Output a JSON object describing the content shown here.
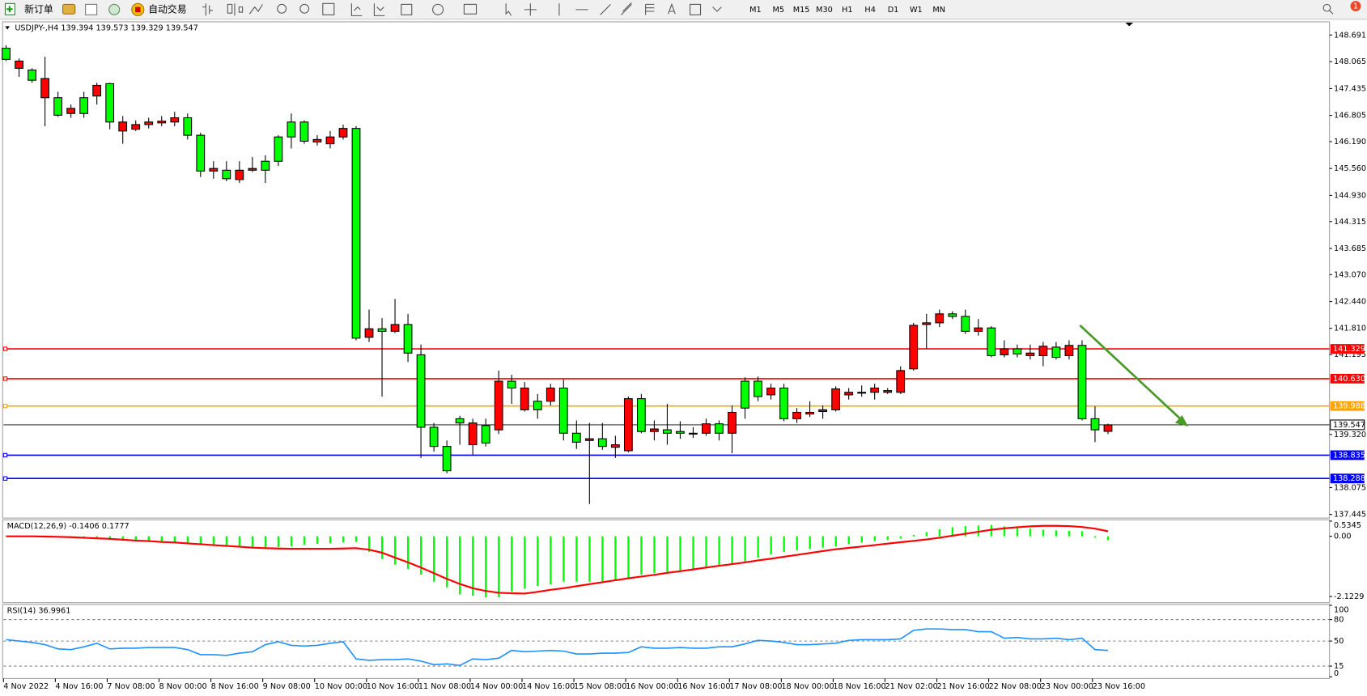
{
  "toolbar": {
    "new_order": "新订单",
    "auto_trading": "自动交易",
    "timeframes": [
      "M1",
      "M5",
      "M15",
      "M30",
      "H1",
      "H4",
      "D1",
      "W1",
      "MN"
    ],
    "notifications": "1"
  },
  "chart_data": [
    {
      "type": "candlestick",
      "title": "USDJPY-,H4  139.394 139.573 139.329 139.547",
      "categories": [
        "4 Nov 2022",
        null,
        null,
        null,
        "4 Nov 16:00",
        null,
        null,
        null,
        "7 Nov 08:00",
        null,
        null,
        null,
        "8 Nov 00:00",
        null,
        null,
        null,
        "8 Nov 16:00",
        null,
        null,
        null,
        "9 Nov 08:00",
        null,
        null,
        null,
        "10 Nov 00:00",
        null,
        null,
        null,
        "10 Nov 16:00",
        null,
        null,
        null,
        "11 Nov 08:00",
        null,
        null,
        null,
        "14 Nov 00:00",
        null,
        null,
        null,
        "14 Nov 16:00",
        null,
        null,
        null,
        "15 Nov 08:00",
        null,
        null,
        null,
        "16 Nov 00:00",
        null,
        null,
        null,
        "16 Nov 16:00",
        null,
        null,
        null,
        "17 Nov 08:00",
        null,
        null,
        null,
        "18 Nov 00:00",
        null,
        null,
        null,
        "18 Nov 16:00",
        null,
        null,
        null,
        "21 Nov 02:00",
        null,
        null,
        null,
        "21 Nov 16:00",
        null,
        null,
        null,
        "22 Nov 08:00",
        null,
        null,
        null,
        "23 Nov 00:00",
        null,
        null,
        null,
        "23 Nov 16:00",
        null
      ],
      "candles": [
        [
          148.38,
          148.45,
          148.08,
          148.12
        ],
        [
          147.91,
          148.14,
          147.71,
          148.08
        ],
        [
          147.87,
          147.91,
          147.57,
          147.63
        ],
        [
          147.22,
          148.18,
          146.55,
          147.67
        ],
        [
          147.22,
          147.36,
          146.77,
          146.81
        ],
        [
          146.85,
          147.06,
          146.75,
          146.97
        ],
        [
          147.22,
          147.36,
          146.75,
          146.85
        ],
        [
          147.26,
          147.57,
          147.06,
          147.51
        ],
        [
          147.55,
          147.57,
          146.48,
          146.65
        ],
        [
          146.44,
          146.79,
          146.14,
          146.65
        ],
        [
          146.48,
          146.69,
          146.44,
          146.59
        ],
        [
          146.59,
          146.75,
          146.5,
          146.65
        ],
        [
          146.63,
          146.79,
          146.55,
          146.67
        ],
        [
          146.65,
          146.89,
          146.55,
          146.75
        ],
        [
          146.75,
          146.85,
          146.24,
          146.34
        ],
        [
          146.34,
          146.4,
          145.36,
          145.5
        ],
        [
          145.5,
          145.73,
          145.32,
          145.56
        ],
        [
          145.52,
          145.73,
          145.26,
          145.32
        ],
        [
          145.3,
          145.73,
          145.22,
          145.52
        ],
        [
          145.52,
          145.83,
          145.48,
          145.56
        ],
        [
          145.73,
          145.87,
          145.22,
          145.52
        ],
        [
          146.3,
          146.34,
          145.62,
          145.73
        ],
        [
          146.65,
          146.85,
          146.03,
          146.3
        ],
        [
          146.65,
          146.69,
          146.14,
          146.2
        ],
        [
          146.18,
          146.34,
          146.1,
          146.24
        ],
        [
          146.14,
          146.44,
          146.03,
          146.3
        ],
        [
          146.3,
          146.59,
          146.24,
          146.5
        ],
        [
          146.5,
          146.55,
          141.53,
          141.58
        ],
        [
          141.6,
          142.25,
          141.49,
          141.8
        ],
        [
          141.8,
          142.05,
          140.21,
          141.74
        ],
        [
          141.74,
          142.5,
          141.7,
          141.9
        ],
        [
          141.9,
          142.15,
          141.02,
          141.23
        ],
        [
          141.19,
          141.43,
          138.77,
          139.49
        ],
        [
          139.49,
          139.59,
          138.92,
          139.04
        ],
        [
          139.04,
          139.18,
          138.41,
          138.47
        ],
        [
          139.69,
          139.76,
          139.08,
          139.59
        ],
        [
          139.08,
          139.69,
          138.84,
          139.59
        ],
        [
          139.53,
          139.69,
          139.04,
          139.12
        ],
        [
          139.43,
          140.82,
          139.33,
          140.57
        ],
        [
          140.57,
          140.72,
          140.04,
          140.41
        ],
        [
          139.9,
          140.55,
          139.86,
          140.41
        ],
        [
          140.1,
          140.27,
          139.69,
          139.9
        ],
        [
          140.1,
          140.51,
          140.0,
          140.41
        ],
        [
          140.41,
          140.61,
          139.18,
          139.35
        ],
        [
          139.35,
          139.65,
          138.98,
          139.14
        ],
        [
          139.18,
          139.59,
          137.69,
          139.22
        ],
        [
          139.22,
          139.59,
          138.96,
          139.04
        ],
        [
          139.02,
          139.29,
          138.77,
          139.08
        ],
        [
          138.94,
          140.21,
          138.9,
          140.16
        ],
        [
          140.16,
          140.27,
          139.35,
          139.39
        ],
        [
          139.39,
          139.65,
          139.18,
          139.45
        ],
        [
          139.43,
          140.04,
          139.08,
          139.35
        ],
        [
          139.39,
          139.63,
          139.22,
          139.35
        ],
        [
          139.34,
          139.49,
          139.24,
          139.35
        ],
        [
          139.35,
          139.69,
          139.29,
          139.57
        ],
        [
          139.57,
          139.65,
          139.18,
          139.35
        ],
        [
          139.35,
          140.0,
          138.88,
          139.84
        ],
        [
          140.57,
          140.66,
          139.69,
          139.94
        ],
        [
          140.57,
          140.68,
          140.1,
          140.21
        ],
        [
          140.25,
          140.51,
          140.14,
          140.41
        ],
        [
          140.41,
          140.51,
          139.63,
          139.69
        ],
        [
          139.69,
          139.94,
          139.59,
          139.84
        ],
        [
          139.8,
          140.1,
          139.73,
          139.84
        ],
        [
          139.86,
          140.0,
          139.69,
          139.9
        ],
        [
          139.9,
          140.45,
          139.86,
          140.39
        ],
        [
          140.25,
          140.41,
          140.14,
          140.31
        ],
        [
          140.29,
          140.47,
          140.21,
          140.31
        ],
        [
          140.31,
          140.51,
          140.14,
          140.41
        ],
        [
          140.31,
          140.41,
          140.27,
          140.35
        ],
        [
          140.31,
          140.92,
          140.27,
          140.82
        ],
        [
          140.86,
          141.94,
          140.82,
          141.88
        ],
        [
          141.9,
          142.15,
          141.33,
          141.94
        ],
        [
          141.94,
          142.25,
          141.84,
          142.15
        ],
        [
          142.15,
          142.21,
          142.03,
          142.09
        ],
        [
          142.09,
          142.25,
          141.68,
          141.74
        ],
        [
          141.74,
          142.03,
          141.64,
          141.82
        ],
        [
          141.82,
          141.86,
          141.13,
          141.17
        ],
        [
          141.19,
          141.53,
          141.13,
          141.33
        ],
        [
          141.33,
          141.43,
          141.13,
          141.21
        ],
        [
          141.17,
          141.43,
          141.08,
          141.23
        ],
        [
          141.17,
          141.49,
          140.92,
          141.39
        ],
        [
          141.37,
          141.49,
          141.08,
          141.13
        ],
        [
          141.17,
          141.53,
          141.08,
          141.41
        ],
        [
          141.41,
          141.53,
          139.65,
          139.69
        ],
        [
          139.69,
          139.98,
          139.14,
          139.43
        ],
        [
          139.394,
          139.573,
          139.329,
          139.547
        ]
      ],
      "up_color": "#ff0000",
      "down_color": "#00ff00",
      "ylim": [
        137.38,
        148.96
      ],
      "yticks": [
        148.691,
        148.065,
        147.435,
        146.805,
        {
          "value": 146.19,
          "label": "146.190"
        },
        {
          "value": 145.56,
          "label": "145.560"
        },
        {
          "value": 144.93,
          "label": "144.930"
        },
        144.315,
        143.685,
        {
          "value": 143.07,
          "label": "143.070"
        },
        {
          "value": 142.44,
          "label": "142.440"
        },
        {
          "value": 141.81,
          "label": "141.810"
        },
        141.195,
        {
          "value": 139.32,
          "label": "139.320"
        },
        138.075,
        137.445
      ],
      "levels": [
        {
          "value": 141.329,
          "color": "#ff0000"
        },
        {
          "value": 140.63,
          "label": "140.630",
          "color": "#ff0000"
        },
        {
          "value": 139.988,
          "color": "#ffa500"
        },
        {
          "value": 138.835,
          "color": "#0000ff"
        },
        {
          "value": 138.288,
          "color": "#0000ff"
        }
      ],
      "current_price": 139.547
    },
    {
      "type": "macd",
      "title": "MACD(12,26,9) -0.1406 0.1777",
      "histogram": [
        0.02,
        0.03,
        0.03,
        0.02,
        0.0,
        -0.05,
        -0.08,
        -0.1,
        -0.12,
        -0.15,
        -0.18,
        -0.2,
        -0.22,
        -0.24,
        -0.25,
        -0.27,
        -0.3,
        -0.33,
        -0.36,
        -0.38,
        -0.4,
        -0.38,
        -0.35,
        -0.3,
        -0.27,
        -0.25,
        -0.22,
        -0.2,
        -0.55,
        -0.8,
        -1.0,
        -1.15,
        -1.35,
        -1.6,
        -1.8,
        -2.05,
        -2.1,
        -2.15,
        -2.15,
        -1.95,
        -1.85,
        -1.75,
        -1.7,
        -1.6,
        -1.6,
        -1.6,
        -1.6,
        -1.55,
        -1.5,
        -1.35,
        -1.3,
        -1.25,
        -1.2,
        -1.15,
        -1.1,
        -1.05,
        -1.0,
        -0.9,
        -0.75,
        -0.65,
        -0.55,
        -0.5,
        -0.45,
        -0.4,
        -0.35,
        -0.28,
        -0.22,
        -0.17,
        -0.12,
        -0.07,
        0.05,
        0.15,
        0.25,
        0.32,
        0.36,
        0.38,
        0.4,
        0.35,
        0.3,
        0.27,
        0.23,
        0.21,
        0.19,
        0.18,
        -0.05,
        -0.1406
      ],
      "histogram_color": "#00ff00",
      "signal": [
        0.0,
        0.0,
        0.0,
        -0.01,
        -0.02,
        -0.03,
        -0.05,
        -0.07,
        -0.09,
        -0.12,
        -0.15,
        -0.17,
        -0.2,
        -0.22,
        -0.25,
        -0.28,
        -0.31,
        -0.34,
        -0.37,
        -0.4,
        -0.42,
        -0.43,
        -0.44,
        -0.44,
        -0.44,
        -0.44,
        -0.43,
        -0.42,
        -0.47,
        -0.58,
        -0.75,
        -0.92,
        -1.1,
        -1.3,
        -1.5,
        -1.68,
        -1.83,
        -1.93,
        -1.99,
        -2.01,
        -2.02,
        -1.96,
        -1.89,
        -1.83,
        -1.76,
        -1.69,
        -1.62,
        -1.55,
        -1.48,
        -1.42,
        -1.36,
        -1.29,
        -1.23,
        -1.17,
        -1.1,
        -1.04,
        -0.98,
        -0.92,
        -0.85,
        -0.79,
        -0.72,
        -0.66,
        -0.59,
        -0.52,
        -0.46,
        -0.41,
        -0.36,
        -0.31,
        -0.26,
        -0.21,
        -0.16,
        -0.11,
        -0.05,
        0.02,
        0.09,
        0.16,
        0.23,
        0.28,
        0.32,
        0.35,
        0.37,
        0.37,
        0.36,
        0.33,
        0.27,
        0.1777
      ],
      "signal_color": "#ff0000",
      "ylim": [
        -2.31,
        0.55
      ],
      "yticks": [
        0.5345,
        {
          "value": 0,
          "label": "0.00"
        },
        -2.1229
      ]
    },
    {
      "type": "line",
      "title": "RSI(14) 36.9961",
      "values": [
        52,
        50,
        48,
        45,
        39,
        38,
        42,
        47,
        39,
        40,
        40,
        41,
        41,
        41,
        38,
        31,
        31,
        30,
        33,
        35,
        45,
        49,
        44,
        43,
        44,
        47,
        49,
        25,
        23,
        24,
        24,
        25,
        22,
        17,
        18,
        16,
        25,
        24,
        26,
        37,
        35,
        36,
        37,
        36,
        32,
        32,
        33,
        33,
        34,
        42,
        40,
        40,
        41,
        40,
        40,
        42,
        42,
        46,
        51,
        50,
        48,
        45,
        45,
        46,
        47,
        51,
        52,
        52,
        52,
        53,
        65,
        67,
        67,
        66,
        66,
        63,
        63,
        54,
        55,
        53,
        53,
        54,
        52,
        54,
        38,
        36.9961
      ],
      "color": "#1e90ff",
      "ylim": [
        0,
        100
      ],
      "yticks": [
        100,
        80,
        50,
        15,
        0
      ],
      "levels": [
        80,
        50,
        15
      ]
    }
  ]
}
